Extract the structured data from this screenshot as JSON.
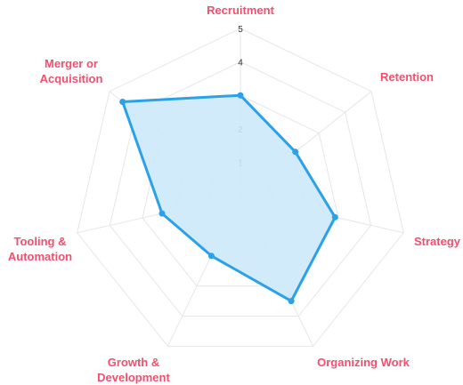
{
  "chart_data": {
    "type": "radar",
    "axes": [
      "Recruitment",
      "Retention",
      "Strategy",
      "Organizing Work",
      "Growth & Development",
      "Tooling & Automation",
      "Merger or Acquisition"
    ],
    "axis_label_lines": [
      [
        "Recruitment"
      ],
      [
        "Retention"
      ],
      [
        "Strategy"
      ],
      [
        "Organizing Work"
      ],
      [
        "Growth &",
        "Development"
      ],
      [
        "Tooling &",
        "Automation"
      ],
      [
        "Merger or",
        "Acquisition"
      ]
    ],
    "ticks": [
      "1",
      "2",
      "3",
      "4",
      "5"
    ],
    "range": [
      0,
      5
    ],
    "series": [
      {
        "values": [
          3,
          2.1,
          2.9,
          3.5,
          2,
          2.4,
          4.5
        ]
      }
    ],
    "colors": {
      "line": "#2aa1e8",
      "fill": "#cde9fb",
      "label": "#f0506e",
      "grid": "#e6e6ea"
    }
  }
}
